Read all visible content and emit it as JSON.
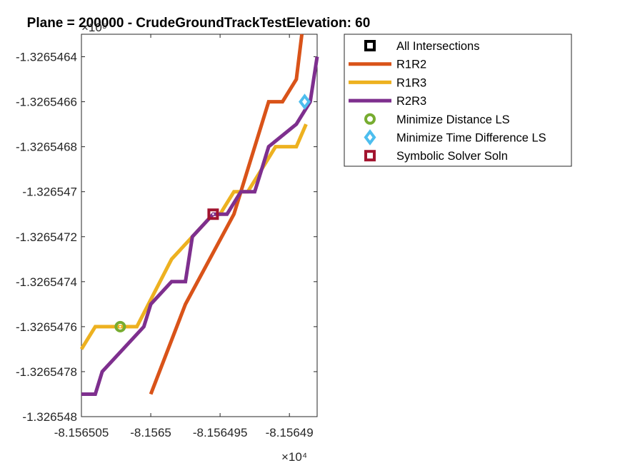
{
  "chart_data": {
    "type": "line",
    "title": "Plane = 200000 - CrudeGroundTrackTestElevation: 60",
    "x_exponent": "×10⁴",
    "y_exponent": "×10⁵",
    "xlim": [
      -8.156505,
      -8.156488
    ],
    "ylim": [
      -1.326548,
      -1.3265463
    ],
    "x_ticks": [
      -8.156505,
      -8.1565,
      -8.156495,
      -8.15649
    ],
    "x_tick_labels": [
      "-8.156505",
      "-8.1565",
      "-8.156495",
      "-8.15649"
    ],
    "y_ticks": [
      -1.326548,
      -1.3265478,
      -1.3265476,
      -1.3265474,
      -1.3265472,
      -1.326547,
      -1.3265468,
      -1.3265466,
      -1.3265464
    ],
    "y_tick_labels": [
      "-1.326548",
      "-1.3265478",
      "-1.3265476",
      "-1.3265474",
      "-1.3265472",
      "-1.326547",
      "-1.3265468",
      "-1.3265466",
      "-1.3265464"
    ],
    "grid": false,
    "legend_position": "top-right",
    "series": [
      {
        "name": "All Intersections",
        "kind": "marker",
        "marker": "square-dot",
        "color": "#000000",
        "x": [],
        "y": []
      },
      {
        "name": "R1R2",
        "kind": "line",
        "color": "#D95319",
        "x": [
          -8.1565,
          -8.1564975,
          -8.1564975,
          -8.156494,
          -8.156492,
          -8.1564915,
          -8.1564905,
          -8.1564895,
          -8.1564891
        ],
        "y": [
          -1.3265479,
          -1.3265475,
          -1.3265475,
          -1.3265471,
          -1.3265467,
          -1.3265466,
          -1.3265466,
          -1.3265465,
          -1.3265463
        ]
      },
      {
        "name": "R1R3",
        "kind": "line",
        "color": "#EDB120",
        "x": [
          -8.156505,
          -8.156504,
          -8.1565025,
          -8.156501,
          -8.1564985,
          -8.156497,
          -8.1564955,
          -8.156495,
          -8.156494,
          -8.156493,
          -8.156492,
          -8.156491,
          -8.1564895,
          -8.1564888
        ],
        "y": [
          -1.3265477,
          -1.3265476,
          -1.3265476,
          -1.3265476,
          -1.3265473,
          -1.3265472,
          -1.3265471,
          -1.3265471,
          -1.326547,
          -1.326547,
          -1.3265469,
          -1.3265468,
          -1.3265468,
          -1.3265467
        ]
      },
      {
        "name": "R2R3",
        "kind": "line",
        "color": "#7E2F8E",
        "x": [
          -8.156505,
          -8.156504,
          -8.1565035,
          -8.1565005,
          -8.1565,
          -8.1564985,
          -8.1564975,
          -8.156497,
          -8.1564955,
          -8.1564945,
          -8.1564935,
          -8.1564925,
          -8.156492,
          -8.1564915,
          -8.1564895,
          -8.1564885,
          -8.156488
        ],
        "y": [
          -1.3265479,
          -1.3265479,
          -1.3265478,
          -1.3265476,
          -1.3265475,
          -1.3265474,
          -1.3265474,
          -1.3265472,
          -1.3265471,
          -1.3265471,
          -1.326547,
          -1.326547,
          -1.3265469,
          -1.3265468,
          -1.3265467,
          -1.3265466,
          -1.3265464
        ]
      },
      {
        "name": "Minimize Distance LS",
        "kind": "marker",
        "marker": "circle-dot",
        "color": "#77AC30",
        "x": [
          -8.1565022
        ],
        "y": [
          -1.3265476
        ]
      },
      {
        "name": "Minimize Time Difference LS",
        "kind": "marker",
        "marker": "diamond-dot",
        "color": "#4DBEEE",
        "x": [
          -8.1564889
        ],
        "y": [
          -1.3265466
        ]
      },
      {
        "name": "Symbolic Solver Soln",
        "kind": "marker",
        "marker": "square-dot",
        "color": "#A2142F",
        "x": [
          -8.1564955
        ],
        "y": [
          -1.3265471
        ]
      }
    ]
  }
}
